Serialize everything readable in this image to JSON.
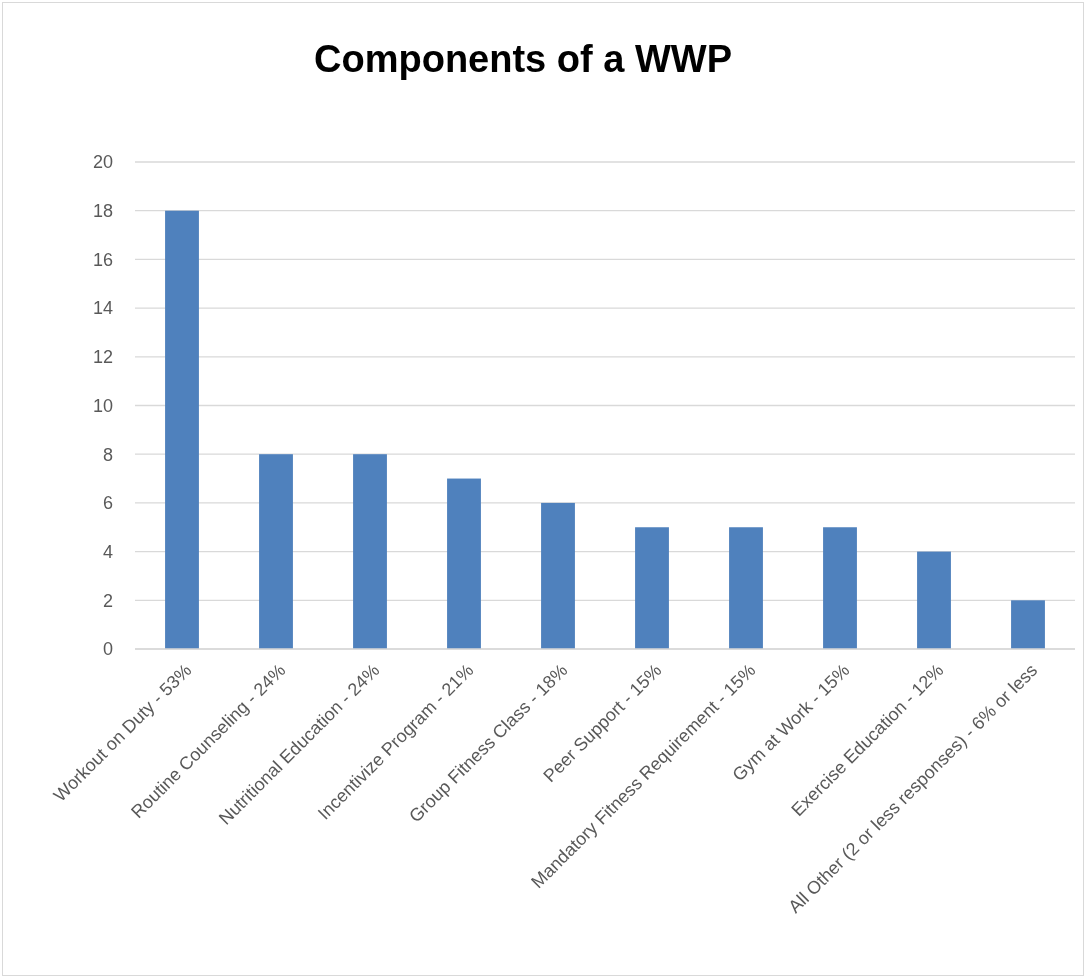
{
  "chart_data": {
    "type": "bar",
    "title": "Components of a WWP",
    "categories": [
      "Workout on Duty - 53%",
      "Routine Counseling - 24%",
      "Nutritional Education - 24%",
      "Incentivize Program - 21%",
      "Group Fitness Class - 18%",
      "Peer Support  - 15%",
      "Mandatory Fitness Requirement - 15%",
      "Gym at Work - 15%",
      "Exercise Education - 12%",
      "All Other (2 or less responses) - 6% or less"
    ],
    "values": [
      18,
      8,
      8,
      7,
      6,
      5,
      5,
      5,
      4,
      2
    ],
    "color": "#4f81bd",
    "ylim": [
      0,
      20
    ],
    "yticks": [
      0,
      2,
      4,
      6,
      8,
      10,
      12,
      14,
      16,
      18,
      20
    ],
    "grid": "y"
  }
}
